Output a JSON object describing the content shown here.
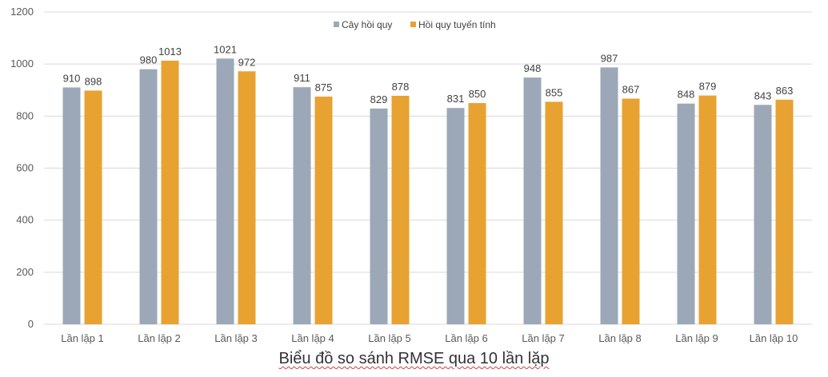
{
  "chart_data": {
    "type": "bar",
    "title": "Biểu đồ so sánh RMSE qua 10 lần lặp",
    "xlabel": "",
    "ylabel": "",
    "categories": [
      "Lần lặp 1",
      "Lần lặp 2",
      "Lần lặp 3",
      "Lần lặp 4",
      "Lần lặp 5",
      "Lần lặp 6",
      "Lần lặp 7",
      "Lần lặp 8",
      "Lần lặp 9",
      "Lần lặp 10"
    ],
    "series": [
      {
        "name": "Cây hồi quy",
        "color": "#9ca8b8",
        "values": [
          910,
          980,
          1021,
          911,
          829,
          831,
          948,
          987,
          848,
          843
        ]
      },
      {
        "name": "Hồi quy tuyến tính",
        "color": "#e8a232",
        "values": [
          898,
          1013,
          972,
          875,
          878,
          850,
          855,
          867,
          879,
          863
        ]
      }
    ],
    "ylim": [
      0,
      1200
    ],
    "yticks": [
      0,
      200,
      400,
      600,
      800,
      1000,
      1200
    ],
    "grid": true,
    "legend": "top-center"
  }
}
